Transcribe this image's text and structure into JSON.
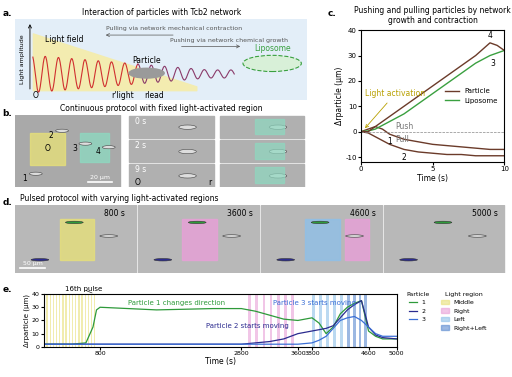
{
  "panel_labels": [
    "a.",
    "b.",
    "c.",
    "d.",
    "e."
  ],
  "diagram_a": {
    "title": "Interaction of particles with Tcb2 network",
    "y_label": "Light amplitude",
    "light_field": "Light field",
    "pull": "Pulling via network mechanical contraction",
    "push": "Pushing via network chemical growth",
    "particle": "Particle",
    "liposome": "Liposome",
    "origin": "O",
    "r_light": "r'light",
    "r_lead": "rlead"
  },
  "images_b": {
    "title": "Continuous protocol with fixed light-activated region",
    "times": [
      "0 s",
      "2 s",
      "9 s"
    ],
    "scale_bar": "20 µm",
    "particles": [
      "1",
      "2",
      "3",
      "4"
    ],
    "origin": "O",
    "r": "r"
  },
  "images_d": {
    "title": "Pulsed protocol with varying light-activated regions",
    "times": [
      "800 s",
      "3600 s",
      "4600 s",
      "5000 s"
    ],
    "scale_bar": "50 µm"
  },
  "chart_data": [
    {
      "type": "line",
      "title": "Pushing and pulling particles by network growth and contraction",
      "x_label": "Time (s)",
      "y_label": "Δrparticle (µm)",
      "x": [
        0,
        0.5,
        1,
        1.5,
        2,
        3,
        4,
        5,
        6,
        7,
        8,
        9,
        9.5,
        10
      ],
      "series": [
        {
          "name": "1",
          "color": "#6b3b2a",
          "values": [
            0,
            1,
            2,
            1,
            -1,
            -3,
            -4,
            -5,
            -5.5,
            -6,
            -6.5,
            -7,
            -7,
            -7
          ]
        },
        {
          "name": "2",
          "color": "#6b3b2a",
          "values": [
            0,
            -0.5,
            -2,
            -3.5,
            -5,
            -7,
            -8,
            -8.5,
            -9,
            -9,
            -9.5,
            -9.5,
            -9.5,
            -9.5
          ]
        },
        {
          "name": "3",
          "color": "#3aa040",
          "values": [
            0,
            0.3,
            1,
            2.5,
            4,
            7,
            11,
            15,
            19,
            23,
            27,
            30,
            31,
            32
          ]
        },
        {
          "name": "4",
          "color": "#6b3b2a",
          "values": [
            0,
            0,
            2,
            4,
            6,
            10,
            14,
            18,
            22,
            26,
            30,
            35,
            34,
            32
          ]
        }
      ],
      "legend_entries": [
        {
          "name": "Particle",
          "color": "#6b3b2a"
        },
        {
          "name": "Liposome",
          "color": "#3aa040"
        }
      ],
      "legend": "center right",
      "annotations": [
        "Light activation",
        "Push",
        "Pull"
      ],
      "xlim": [
        0,
        10
      ],
      "ylim": [
        -12,
        40
      ],
      "xticks": [
        0,
        5,
        10
      ],
      "yticks": [
        -10,
        0,
        10,
        20,
        30,
        40
      ]
    },
    {
      "type": "line",
      "x_label": "Time (s)",
      "y_label": "Δrparticle (µm)",
      "x": [
        0,
        200,
        400,
        600,
        700,
        750,
        800,
        1200,
        1600,
        2000,
        2400,
        2800,
        3000,
        3200,
        3400,
        3600,
        3800,
        3900,
        4000,
        4100,
        4200,
        4300,
        4400,
        4500,
        4600,
        4700,
        4800,
        5000
      ],
      "legend_title": "Particle",
      "series": [
        {
          "name": "1",
          "color": "#2e9a3a",
          "values": [
            2,
            2,
            2,
            3,
            15,
            28,
            30,
            29,
            28,
            28.5,
            29,
            29,
            27,
            24,
            21,
            20,
            22,
            18,
            10,
            15,
            25,
            30,
            33,
            35,
            12,
            8,
            6,
            6
          ]
        },
        {
          "name": "2",
          "color": "#2b2b8f",
          "values": [
            2,
            2,
            2,
            2,
            2,
            2,
            2,
            2,
            2,
            2,
            2,
            2,
            3,
            4,
            6,
            10,
            12,
            13,
            14,
            16,
            22,
            28,
            32,
            35,
            15,
            9,
            7,
            6
          ]
        },
        {
          "name": "3",
          "color": "#3b6fd6",
          "values": [
            2,
            2,
            2,
            2,
            2,
            2,
            2,
            2,
            2,
            2,
            2,
            2,
            2,
            2,
            2,
            2,
            3,
            5,
            8,
            14,
            20,
            22,
            23,
            20,
            15,
            10,
            8,
            8
          ]
        }
      ],
      "light_regions_title": "Light region",
      "light_regions": [
        {
          "name": "Middle",
          "color": "#e8e07a",
          "spans": [
            [
              40,
              60
            ],
            [
              85,
              105
            ],
            [
              130,
              150
            ],
            [
              175,
              195
            ],
            [
              220,
              240
            ],
            [
              265,
              285
            ],
            [
              310,
              330
            ],
            [
              355,
              375
            ],
            [
              400,
              420
            ],
            [
              445,
              465
            ],
            [
              490,
              510
            ],
            [
              535,
              555
            ],
            [
              580,
              600
            ],
            [
              625,
              645
            ],
            [
              670,
              690
            ],
            [
              715,
              735
            ]
          ]
        },
        {
          "name": "Right",
          "color": "#e8a0d8",
          "spans": [
            [
              2900,
              2940
            ],
            [
              3000,
              3040
            ],
            [
              3100,
              3140
            ],
            [
              3200,
              3240
            ],
            [
              3300,
              3340
            ],
            [
              3400,
              3440
            ],
            [
              3500,
              3540
            ]
          ]
        },
        {
          "name": "Left",
          "color": "#8fc0e8",
          "spans": [
            [
              3800,
              3840
            ],
            [
              3900,
              3940
            ],
            [
              4000,
              4040
            ],
            [
              4100,
              4140
            ],
            [
              4200,
              4240
            ]
          ]
        },
        {
          "name": "Right+Left",
          "color": "#5a8ad0",
          "spans": [
            [
              4300,
              4340
            ],
            [
              4380,
              4420
            ],
            [
              4460,
              4500
            ],
            [
              4540,
              4580
            ]
          ]
        }
      ],
      "annotations": [
        "16th pulse",
        "Particle 1 changes direction",
        "Particle 2 starts moving",
        "Particle 3 starts moving"
      ],
      "xlim": [
        0,
        5000
      ],
      "ylim": [
        0,
        40
      ],
      "xticks": [
        800,
        2800,
        3600,
        3800,
        4600,
        5000
      ],
      "yticks": [
        0,
        10,
        20,
        30,
        40
      ]
    }
  ]
}
